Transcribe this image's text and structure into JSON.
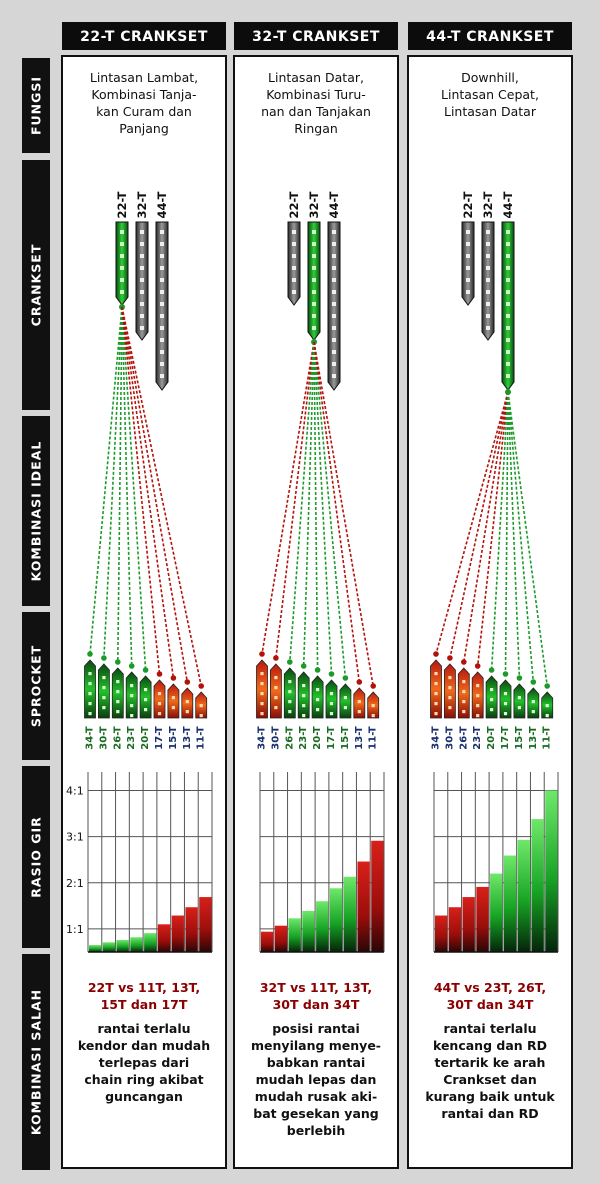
{
  "side_labels": [
    "FUNGSI",
    "CRANKSET",
    "KOMBINASI IDEAL",
    "SPROCKET",
    "RASIO GIR",
    "KOMBINASI SALAH"
  ],
  "crank_labels": [
    "22-T",
    "32-T",
    "44-T"
  ],
  "sprocket_labels": [
    "34-T",
    "30-T",
    "26-T",
    "23-T",
    "20-T",
    "17-T",
    "15-T",
    "13-T",
    "11-T"
  ],
  "ratio_ticks": [
    "4:1",
    "3:1",
    "2:1",
    "1:1"
  ],
  "colors": {
    "ideal": "#1c9a2a",
    "wrong": "#b3120b",
    "neutral": "#555555",
    "label_blue": "#1a2f6b",
    "label_green": "#1a6b22"
  },
  "columns": [
    {
      "header": "22-T CRANKSET",
      "fungsi": [
        "Lintasan Lambat,",
        "Kombinasi Tanja-",
        "kan Curam dan",
        "Panjang"
      ],
      "active_crank": 0,
      "sprocket_ideal": [
        true,
        true,
        true,
        true,
        true,
        false,
        false,
        false,
        false
      ],
      "wrong_title": [
        "22T vs 11T, 13T,",
        "15T dan 17T"
      ],
      "wrong_desc": [
        "rantai terlalu",
        "kendor dan mudah",
        "terlepas dari",
        "chain ring akibat",
        "guncangan"
      ]
    },
    {
      "header": "32-T CRANKSET",
      "fungsi": [
        "Lintasan Datar,",
        "Kombinasi Turu-",
        "nan dan Tanjakan",
        "Ringan"
      ],
      "active_crank": 1,
      "sprocket_ideal": [
        false,
        false,
        true,
        true,
        true,
        true,
        true,
        false,
        false
      ],
      "wrong_title": [
        "32T vs 11T, 13T,",
        "30T dan 34T"
      ],
      "wrong_desc": [
        "posisi rantai",
        "menyilang menye-",
        "babkan rantai",
        "mudah lepas dan",
        "mudah rusak aki-",
        "bat gesekan yang",
        "berlebih"
      ]
    },
    {
      "header": "44-T CRANKSET",
      "fungsi": [
        "Downhill,",
        "Lintasan Cepat,",
        "Lintasan Datar"
      ],
      "active_crank": 2,
      "sprocket_ideal": [
        false,
        false,
        false,
        false,
        true,
        true,
        true,
        true,
        true
      ],
      "wrong_title": [
        "44T vs 23T, 26T,",
        "30T dan 34T"
      ],
      "wrong_desc": [
        "rantai terlalu",
        "kencang dan RD",
        "tertarik ke arah",
        "Crankset dan",
        "kurang baik untuk",
        "rantai dan RD"
      ]
    }
  ],
  "chart_data": [
    {
      "type": "bar",
      "title": "",
      "xlabel": "",
      "ylabel": "",
      "ylim": [
        0.5,
        4.4
      ],
      "yticks": [
        "1:1",
        "2:1",
        "3:1",
        "4:1"
      ],
      "values": [
        0.65,
        0.71,
        0.76,
        0.82,
        0.91,
        1.1,
        1.29,
        1.47,
        1.69
      ],
      "ideal": [
        true,
        true,
        true,
        true,
        true,
        false,
        false,
        false,
        false
      ]
    },
    {
      "type": "bar",
      "title": "",
      "xlabel": "",
      "ylabel": "",
      "ylim": [
        0.5,
        4.4
      ],
      "yticks": [
        "1:1",
        "2:1",
        "3:1",
        "4:1"
      ],
      "values": [
        0.94,
        1.07,
        1.23,
        1.39,
        1.6,
        1.88,
        2.13,
        2.46,
        2.91
      ],
      "ideal": [
        false,
        false,
        true,
        true,
        true,
        true,
        true,
        false,
        false
      ]
    },
    {
      "type": "bar",
      "title": "",
      "xlabel": "",
      "ylabel": "",
      "ylim": [
        0.5,
        4.4
      ],
      "yticks": [
        "1:1",
        "2:1",
        "3:1",
        "4:1"
      ],
      "values": [
        1.29,
        1.47,
        1.69,
        1.91,
        2.2,
        2.59,
        2.93,
        3.38,
        4.0
      ],
      "ideal": [
        false,
        false,
        false,
        false,
        true,
        true,
        true,
        true,
        true
      ]
    }
  ]
}
